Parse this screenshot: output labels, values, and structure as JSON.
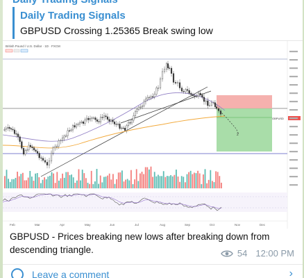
{
  "channel": {
    "name_partial": "Daily Trading Signals"
  },
  "reply": {
    "title": "Daily Trading Signals",
    "text": "GBPUSD Crossing 1.25365 Break swing low"
  },
  "chart": {
    "header_text": "British Pound / U.S. Dollar · 1D · FXCM",
    "price_label": "GBPUSD",
    "x_ticks": [
      "Feb",
      "Mar",
      "Apr",
      "May",
      "Jun",
      "Jul",
      "Aug",
      "Sep",
      "Oct",
      "Nov",
      "Dec"
    ],
    "colors": {
      "up": "#26a69a",
      "down": "#ef5350",
      "stop_zone": "#f4a9a5",
      "target_zone": "#9ad79a",
      "ma_orange": "#f2a93b",
      "ma_purple": "#8e7cc3"
    }
  },
  "message": {
    "caption": "GBPUSD - Prices breaking new lows after breaking down from descending triangle.",
    "views": "54",
    "time": "12:00 PM"
  },
  "footer": {
    "comment_label": "Leave a comment"
  }
}
